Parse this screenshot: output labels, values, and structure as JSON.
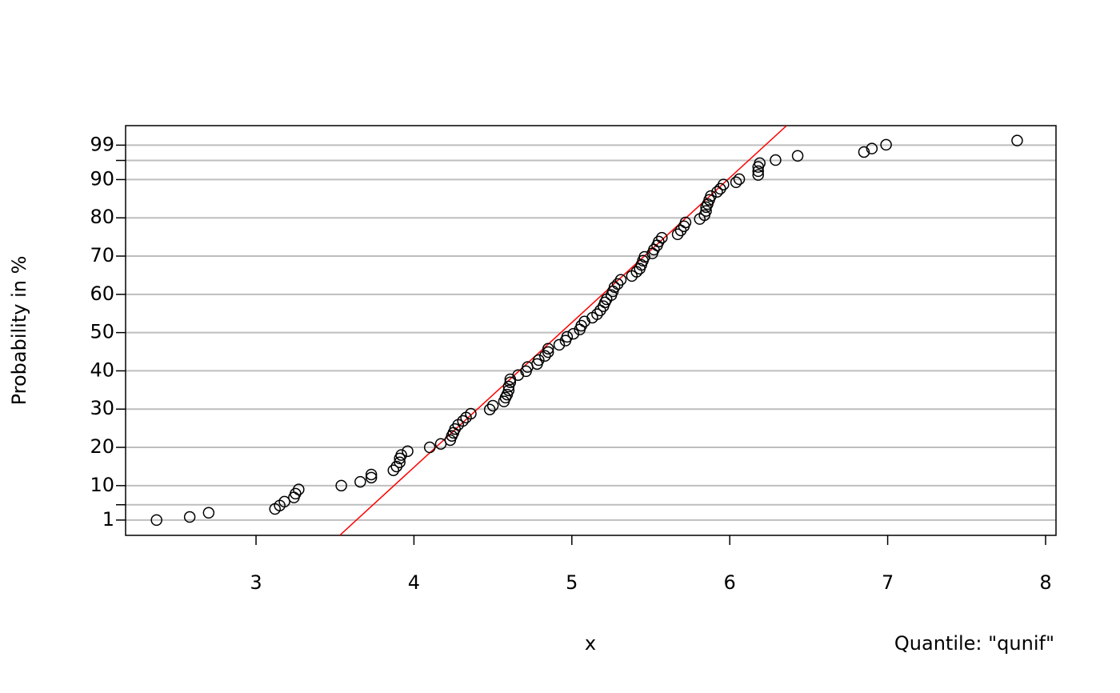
{
  "chart_data": {
    "type": "scatter",
    "xlabel": "x",
    "ylabel": "Probability in %",
    "annotation": "Quantile: \"qunif\"",
    "xlim": [
      2.174,
      8.066
    ],
    "ylim": [
      -3.0,
      104.1
    ],
    "xticks": [
      3,
      4,
      5,
      6,
      7,
      8
    ],
    "yticks": [
      1,
      10,
      20,
      30,
      40,
      50,
      60,
      70,
      80,
      90,
      99
    ],
    "minor_yticks": [
      5,
      95
    ],
    "grid": true,
    "color": "#000000",
    "fit_line": {
      "color": "#ff0000",
      "x": [
        3.53,
        6.36
      ],
      "y": [
        -3.0,
        104.1
      ]
    },
    "x": [
      2.37,
      2.58,
      2.7,
      3.12,
      3.15,
      3.18,
      3.24,
      3.25,
      3.27,
      3.54,
      3.66,
      3.73,
      3.73,
      3.87,
      3.89,
      3.91,
      3.91,
      3.92,
      3.96,
      4.1,
      4.17,
      4.23,
      4.24,
      4.25,
      4.26,
      4.28,
      4.31,
      4.33,
      4.36,
      4.48,
      4.5,
      4.57,
      4.58,
      4.59,
      4.6,
      4.6,
      4.61,
      4.61,
      4.66,
      4.71,
      4.72,
      4.78,
      4.79,
      4.83,
      4.85,
      4.85,
      4.92,
      4.96,
      4.97,
      5.01,
      5.05,
      5.06,
      5.08,
      5.13,
      5.16,
      5.18,
      5.2,
      5.21,
      5.22,
      5.25,
      5.26,
      5.27,
      5.29,
      5.31,
      5.38,
      5.41,
      5.43,
      5.44,
      5.45,
      5.46,
      5.51,
      5.52,
      5.54,
      5.55,
      5.57,
      5.67,
      5.69,
      5.71,
      5.72,
      5.81,
      5.84,
      5.85,
      5.85,
      5.86,
      5.87,
      5.88,
      5.92,
      5.94,
      5.96,
      6.04,
      6.06,
      6.18,
      6.18,
      6.18,
      6.19,
      6.29,
      6.43,
      6.85,
      6.9,
      6.99,
      7.82
    ],
    "values": [
      1.0,
      1.8,
      2.9,
      3.9,
      4.8,
      5.8,
      6.9,
      7.9,
      9.0,
      10.0,
      11.0,
      12.1,
      12.9,
      14.0,
      15.0,
      16.1,
      17.1,
      18.0,
      19.0,
      20.0,
      20.9,
      21.9,
      23.0,
      23.8,
      24.8,
      25.9,
      26.9,
      27.8,
      28.8,
      29.9,
      30.9,
      32.0,
      33.0,
      33.8,
      34.9,
      35.9,
      37.0,
      37.8,
      38.9,
      39.9,
      41.0,
      41.8,
      42.8,
      43.9,
      44.9,
      45.8,
      46.8,
      47.9,
      48.9,
      49.7,
      50.8,
      51.8,
      52.9,
      53.9,
      54.8,
      55.8,
      56.9,
      57.9,
      58.7,
      59.8,
      60.8,
      61.9,
      62.7,
      63.8,
      64.8,
      65.9,
      66.7,
      67.7,
      68.8,
      69.8,
      70.7,
      71.7,
      72.8,
      73.8,
      74.8,
      75.7,
      76.7,
      77.8,
      78.8,
      79.7,
      80.7,
      81.8,
      82.8,
      83.6,
      84.7,
      85.7,
      86.8,
      87.6,
      88.7,
      89.3,
      90.1,
      91.2,
      92.2,
      93.3,
      94.3,
      95.1,
      96.2,
      97.2,
      98.1,
      99.1,
      100.2
    ]
  }
}
